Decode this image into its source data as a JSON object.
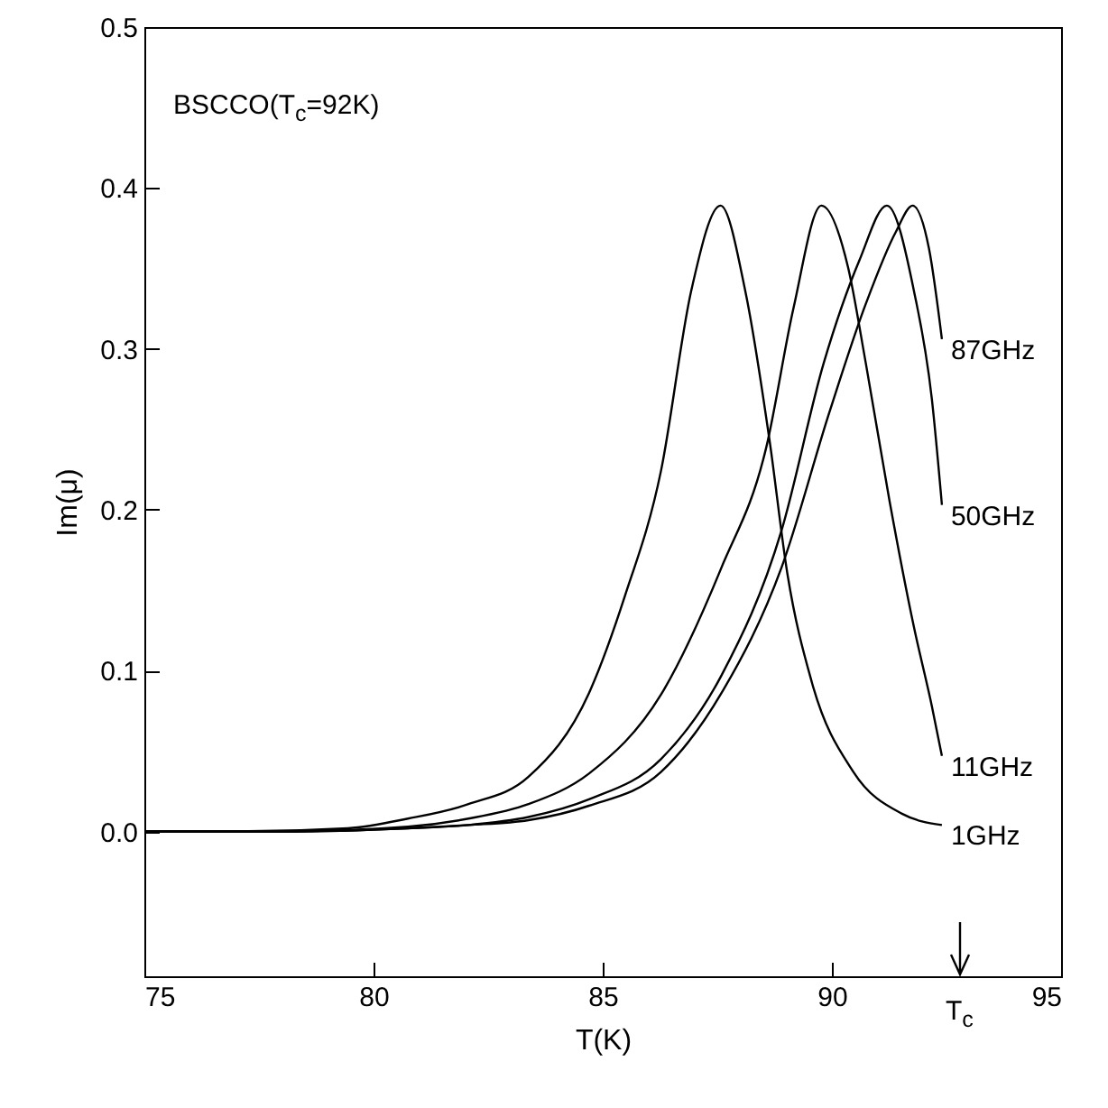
{
  "chart_data": {
    "type": "line",
    "xlabel": "T(K)",
    "ylabel": "Im(μ)",
    "xlim": [
      75,
      95
    ],
    "xticks": [
      75,
      80,
      85,
      90,
      95
    ],
    "ylim": [
      -0.09,
      0.5
    ],
    "yticks": [
      {
        "value": 0,
        "label": "0.0"
      },
      0.1,
      0.2,
      0.3,
      0.4,
      0.5
    ],
    "grid": false,
    "marker": "none",
    "line_style": "solid",
    "annotations": [
      "BSCCO(T$_{c}$=92K)",
      "T$_{c}$"
    ],
    "series": [
      {
        "name": "1GHz",
        "color": "#000000",
        "x": [
          75,
          77,
          79.44,
          80.75,
          82.07,
          83.38,
          84.7,
          85.48,
          86.27,
          86.93,
          87.57,
          88.11,
          88.64,
          89.03,
          89.56,
          90.47,
          91.53,
          92.4
        ],
        "values": [
          0,
          0,
          0.002,
          0.008,
          0.017,
          0.034,
          0.086,
          0.146,
          0.224,
          0.336,
          0.389,
          0.336,
          0.243,
          0.16,
          0.093,
          0.037,
          0.011,
          0.004
        ]
      },
      {
        "name": "11GHz",
        "color": "#000000",
        "x": [
          75,
          78,
          80.75,
          82.07,
          83.38,
          84.7,
          86.27,
          87.59,
          88.57,
          89.16,
          89.77,
          90.35,
          90.74,
          91.26,
          91.79,
          92.18,
          92.4
        ],
        "values": [
          0,
          0,
          0.003,
          0.008,
          0.017,
          0.036,
          0.085,
          0.164,
          0.239,
          0.325,
          0.389,
          0.351,
          0.291,
          0.205,
          0.127,
          0.078,
          0.047
        ]
      },
      {
        "name": "50GHz",
        "color": "#000000",
        "x": [
          75,
          78,
          80.75,
          82.07,
          83.38,
          84.7,
          86.27,
          87.59,
          88.9,
          89.82,
          90.6,
          91.2,
          91.79,
          92.18,
          92.4
        ],
        "values": [
          0,
          0,
          0.002,
          0.004,
          0.009,
          0.02,
          0.045,
          0.097,
          0.187,
          0.291,
          0.355,
          0.389,
          0.336,
          0.269,
          0.203
        ]
      },
      {
        "name": "87GHz",
        "color": "#000000",
        "x": [
          75,
          78,
          80.75,
          82.07,
          83.38,
          84.7,
          86.27,
          87.59,
          88.9,
          89.95,
          90.74,
          91.4,
          91.76,
          92.12,
          92.4
        ],
        "values": [
          0,
          0,
          0.002,
          0.004,
          0.007,
          0.016,
          0.037,
          0.086,
          0.164,
          0.261,
          0.328,
          0.373,
          0.389,
          0.362,
          0.306
        ]
      }
    ]
  }
}
